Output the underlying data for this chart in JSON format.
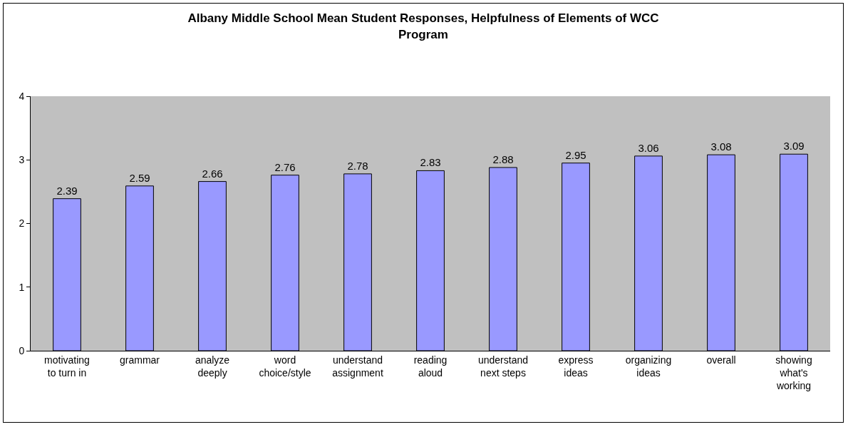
{
  "chart_data": {
    "type": "bar",
    "title": "Albany Middle School Mean Student Responses, Helpfulness of Elements of WCC Program",
    "categories": [
      "motivating to turn in",
      "grammar",
      "analyze deeply",
      "word choice/style",
      "understand assignment",
      "reading aloud",
      "understand next steps",
      "express ideas",
      "organizing ideas",
      "overall",
      "showing what's working"
    ],
    "values": [
      2.39,
      2.59,
      2.66,
      2.76,
      2.78,
      2.83,
      2.88,
      2.95,
      3.06,
      3.08,
      3.09
    ],
    "color": "#9999ff",
    "ylim": [
      0,
      4
    ],
    "yticks": [
      0,
      1,
      2,
      3,
      4
    ],
    "grid": false,
    "data_labels": true
  }
}
